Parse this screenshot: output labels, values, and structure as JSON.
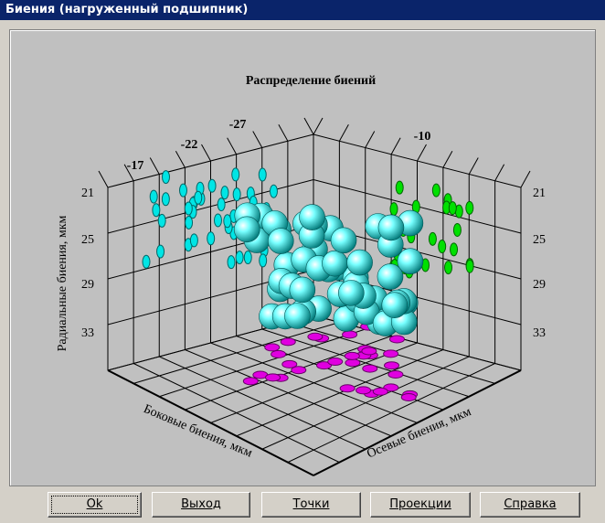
{
  "window": {
    "title": "Биения (нагруженный подшипник)"
  },
  "chart": {
    "title": "Распределение биений",
    "vertical_axis_label": "Радиальные биения, мкм",
    "left_axis_label": "Боковые биения, мкм",
    "right_axis_label": "Осевые биения, мкм",
    "left_ticks": [
      "21",
      "25",
      "29",
      "33"
    ],
    "right_ticks": [
      "21",
      "25",
      "29",
      "33"
    ],
    "top_left_ticks": [
      "-17",
      "-22",
      "-27"
    ],
    "top_right_ticks": [
      "-10"
    ]
  },
  "buttons": [
    "Ok",
    "Выход",
    "Точки",
    "Проекции",
    "Справка"
  ]
}
